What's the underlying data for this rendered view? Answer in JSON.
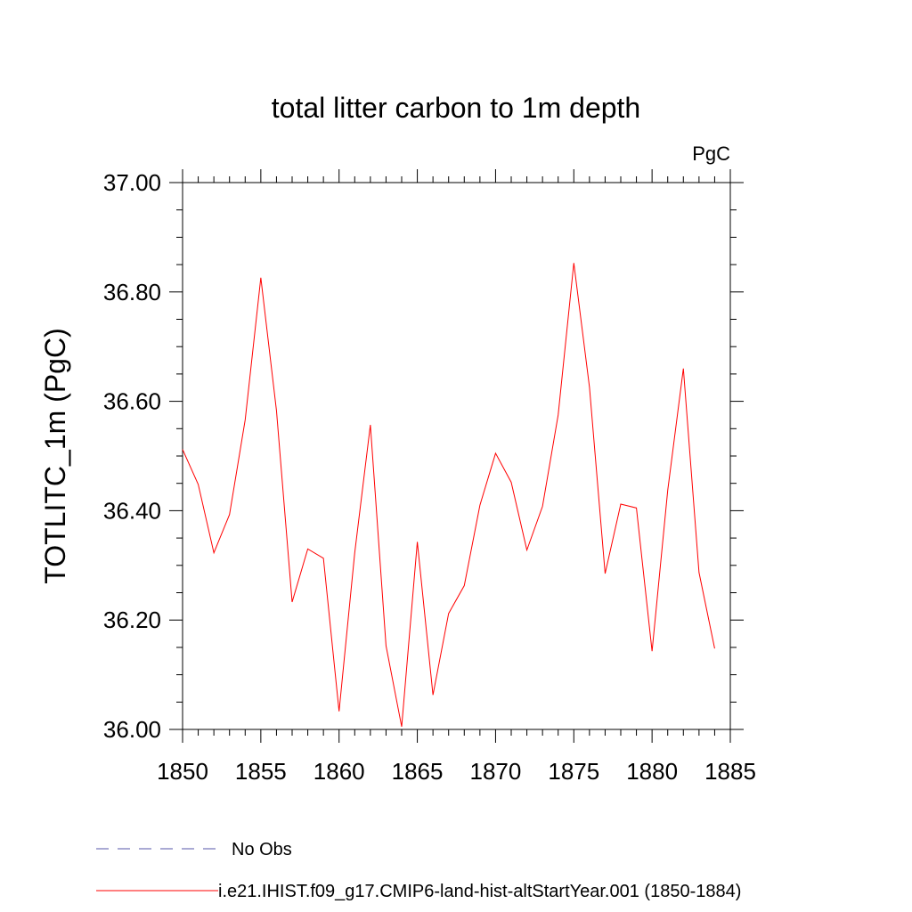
{
  "chart_data": {
    "type": "line",
    "title": "total litter carbon to 1m depth",
    "units_label": "PgC",
    "ylabel": "TOTLITC_1m  (PgC)",
    "xlabel": "",
    "xlim": [
      1850,
      1885
    ],
    "ylim": [
      36.0,
      37.0
    ],
    "x_ticks": [
      "1850",
      "1855",
      "1860",
      "1865",
      "1870",
      "1875",
      "1880",
      "1885"
    ],
    "y_ticks": [
      "36.00",
      "36.20",
      "36.40",
      "36.60",
      "36.80",
      "37.00"
    ],
    "grid": false,
    "legend_position": "bottom-left",
    "series": [
      {
        "name": "No Obs",
        "color": "#5555aa",
        "style": "dashed",
        "x": [],
        "values": []
      },
      {
        "name": "i.e21.IHIST.f09_g17.CMIP6-land-hist-altStartYear.001 (1850-1884)",
        "color": "#ff0000",
        "style": "solid",
        "x": [
          1850,
          1851,
          1852,
          1853,
          1854,
          1855,
          1856,
          1857,
          1858,
          1859,
          1860,
          1861,
          1862,
          1863,
          1864,
          1865,
          1866,
          1867,
          1868,
          1869,
          1870,
          1871,
          1872,
          1873,
          1874,
          1875,
          1876,
          1877,
          1878,
          1879,
          1880,
          1881,
          1882,
          1883,
          1884
        ],
        "values": [
          36.512,
          36.448,
          36.323,
          36.393,
          36.566,
          36.826,
          36.583,
          36.233,
          36.33,
          36.313,
          36.033,
          36.323,
          36.557,
          36.153,
          36.005,
          36.343,
          36.063,
          36.212,
          36.263,
          36.41,
          36.505,
          36.452,
          36.328,
          36.408,
          36.575,
          36.853,
          36.626,
          36.285,
          36.412,
          36.405,
          36.143,
          36.437,
          36.66,
          36.287,
          36.148
        ]
      }
    ]
  }
}
